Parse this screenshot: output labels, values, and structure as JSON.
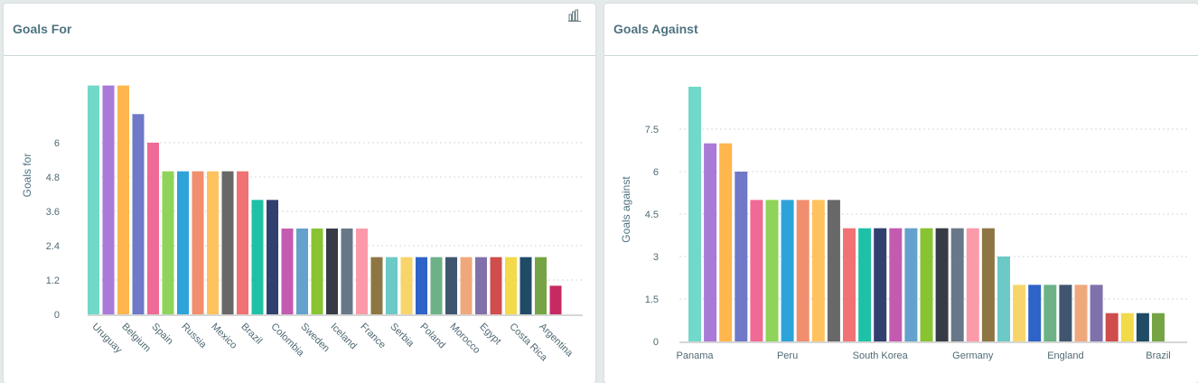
{
  "panels": [
    {
      "title": "Goals For",
      "icon": "bar-chart-icon"
    },
    {
      "title": "Goals Against"
    }
  ],
  "chart_data": [
    {
      "type": "bar",
      "title": "Goals For",
      "xlabel": "",
      "ylabel": "Goals for",
      "ylim": [
        0,
        8
      ],
      "yticks": [
        "0",
        "1.2",
        "2.4",
        "3.6",
        "4.8",
        "6"
      ],
      "ytick_values": [
        0,
        1.2,
        2.4,
        3.6,
        4.8,
        6
      ],
      "grid": true,
      "label_every": 2,
      "shown_labels": [
        "Uruguay",
        "Belgium",
        "Spain",
        "Russia",
        "Mexico",
        "Brazil",
        "Colombia",
        "Sweden",
        "Iceland",
        "France",
        "Serbia",
        "Poland",
        "Morocco",
        "Egypt",
        "Costa Rica",
        "Argentina"
      ],
      "values": [
        8,
        8,
        8,
        7,
        6,
        5,
        5,
        5,
        5,
        5,
        5,
        4,
        4,
        3,
        3,
        3,
        3,
        3,
        3,
        2,
        2,
        2,
        2,
        2,
        2,
        2,
        2,
        2,
        2,
        2,
        2,
        1
      ],
      "colors": [
        "#72d8c9",
        "#a97ad8",
        "#ffb64c",
        "#6f79c8",
        "#f06a96",
        "#8fd35a",
        "#2ea3da",
        "#f18e6e",
        "#ffc25e",
        "#686868",
        "#f07274",
        "#1fc1a6",
        "#32406f",
        "#c45bb1",
        "#64a1cc",
        "#88c431",
        "#363b45",
        "#687889",
        "#fd9aa9",
        "#8e7644",
        "#6bc9c6",
        "#f7d56a",
        "#2e63c8",
        "#6cb286",
        "#405670",
        "#efa87c",
        "#8171ab",
        "#cf4d4d",
        "#f2da4a",
        "#1f4b67",
        "#76a444",
        "#c72a63"
      ]
    },
    {
      "type": "bar",
      "title": "Goals Against",
      "xlabel": "",
      "ylabel": "Goals against",
      "ylim": [
        0,
        9
      ],
      "yticks": [
        "0",
        "1.5",
        "3",
        "4.5",
        "6",
        "7.5"
      ],
      "ytick_values": [
        0,
        1.5,
        3,
        4.5,
        6,
        7.5
      ],
      "grid": true,
      "label_every": 6,
      "shown_labels": [
        "Panama",
        "Peru",
        "South Korea",
        "Germany",
        "England",
        "Brazil"
      ],
      "values": [
        9,
        7,
        7,
        6,
        5,
        5,
        5,
        5,
        5,
        5,
        4,
        4,
        4,
        4,
        4,
        4,
        4,
        4,
        4,
        4,
        3,
        2,
        2,
        2,
        2,
        2,
        2,
        1,
        1,
        1,
        1
      ],
      "colors": [
        "#72d8c9",
        "#a97ad8",
        "#ffb64c",
        "#6f79c8",
        "#f06a96",
        "#8fd35a",
        "#2ea3da",
        "#f18e6e",
        "#ffc25e",
        "#686868",
        "#f07274",
        "#1fc1a6",
        "#32406f",
        "#c45bb1",
        "#64a1cc",
        "#88c431",
        "#363b45",
        "#687889",
        "#fd9aa9",
        "#8e7644",
        "#6bc9c6",
        "#f7d56a",
        "#2e63c8",
        "#6cb286",
        "#405670",
        "#efa87c",
        "#8171ab",
        "#cf4d4d",
        "#f2da4a",
        "#1f4b67",
        "#76a444"
      ]
    }
  ]
}
